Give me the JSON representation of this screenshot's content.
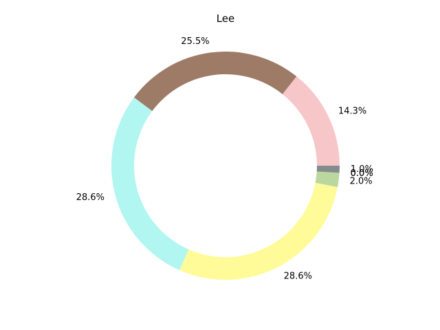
{
  "chart_data": {
    "type": "pie",
    "style": "donut",
    "title": "Lee",
    "start_angle_deg": 0,
    "direction": "counterclockwise",
    "slices": [
      {
        "value": 14.3,
        "label": "14.3%",
        "color": "#f7c6c9"
      },
      {
        "value": 25.5,
        "label": "25.5%",
        "color": "#9e7b66"
      },
      {
        "value": 28.6,
        "label": "28.6%",
        "color": "#b1f6f0"
      },
      {
        "value": 28.6,
        "label": "28.6%",
        "color": "#fffb98"
      },
      {
        "value": 2.0,
        "label": "2.0%",
        "color": "#bcd69f"
      },
      {
        "value": 0.0,
        "label": "0.0%",
        "color": "#888888"
      },
      {
        "value": 0.0,
        "label": "0.0%",
        "color": "#888888"
      },
      {
        "value": 1.0,
        "label": "1.0%",
        "color": "#838b8f"
      }
    ]
  }
}
